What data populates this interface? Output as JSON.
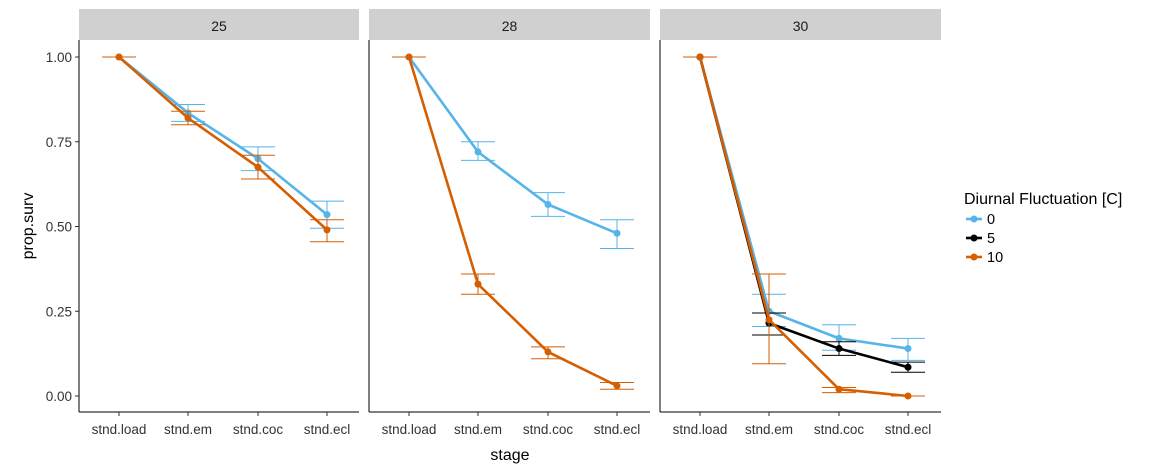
{
  "chart_data": {
    "type": "line",
    "xlabel": "stage",
    "ylabel": "prop.surv",
    "categories": [
      "stnd.load",
      "stnd.em",
      "stnd.coc",
      "stnd.ecl"
    ],
    "ylim": [
      -0.04,
      1.05
    ],
    "yticks": [
      "0.00",
      "0.25",
      "0.50",
      "0.75",
      "1.00"
    ],
    "grid": false,
    "legend": {
      "title": "Diurnal Fluctuation [C]",
      "position": "right",
      "entries": [
        "0",
        "5",
        "10"
      ]
    },
    "colors": {
      "0": "#56B4E9",
      "5": "#000000",
      "10": "#D55E00"
    },
    "panels": [
      {
        "label": "25",
        "series": [
          {
            "name": "0",
            "values": [
              1.0,
              0.835,
              0.7,
              0.535
            ],
            "err_low": [
              1.0,
              0.81,
              0.665,
              0.495
            ],
            "err_high": [
              1.0,
              0.86,
              0.735,
              0.575
            ]
          },
          {
            "name": "10",
            "values": [
              1.0,
              0.82,
              0.675,
              0.49
            ],
            "err_low": [
              1.0,
              0.8,
              0.64,
              0.455
            ],
            "err_high": [
              1.0,
              0.84,
              0.71,
              0.52
            ]
          }
        ]
      },
      {
        "label": "28",
        "series": [
          {
            "name": "0",
            "values": [
              1.0,
              0.72,
              0.565,
              0.48
            ],
            "err_low": [
              1.0,
              0.695,
              0.53,
              0.435
            ],
            "err_high": [
              1.0,
              0.75,
              0.6,
              0.52
            ]
          },
          {
            "name": "10",
            "values": [
              1.0,
              0.33,
              0.13,
              0.03
            ],
            "err_low": [
              1.0,
              0.3,
              0.11,
              0.02
            ],
            "err_high": [
              1.0,
              0.36,
              0.145,
              0.04
            ]
          }
        ]
      },
      {
        "label": "30",
        "series": [
          {
            "name": "0",
            "values": [
              1.0,
              0.25,
              0.17,
              0.14
            ],
            "err_low": [
              1.0,
              0.205,
              0.135,
              0.105
            ],
            "err_high": [
              1.0,
              0.3,
              0.21,
              0.17
            ]
          },
          {
            "name": "5",
            "values": [
              1.0,
              0.215,
              0.14,
              0.085
            ],
            "err_low": [
              1.0,
              0.18,
              0.12,
              0.07
            ],
            "err_high": [
              1.0,
              0.245,
              0.16,
              0.1
            ]
          },
          {
            "name": "10",
            "values": [
              1.0,
              0.225,
              0.02,
              0.0
            ],
            "err_low": [
              1.0,
              0.095,
              0.01,
              0.0
            ],
            "err_high": [
              1.0,
              0.36,
              0.025,
              0.0
            ]
          }
        ]
      }
    ]
  }
}
